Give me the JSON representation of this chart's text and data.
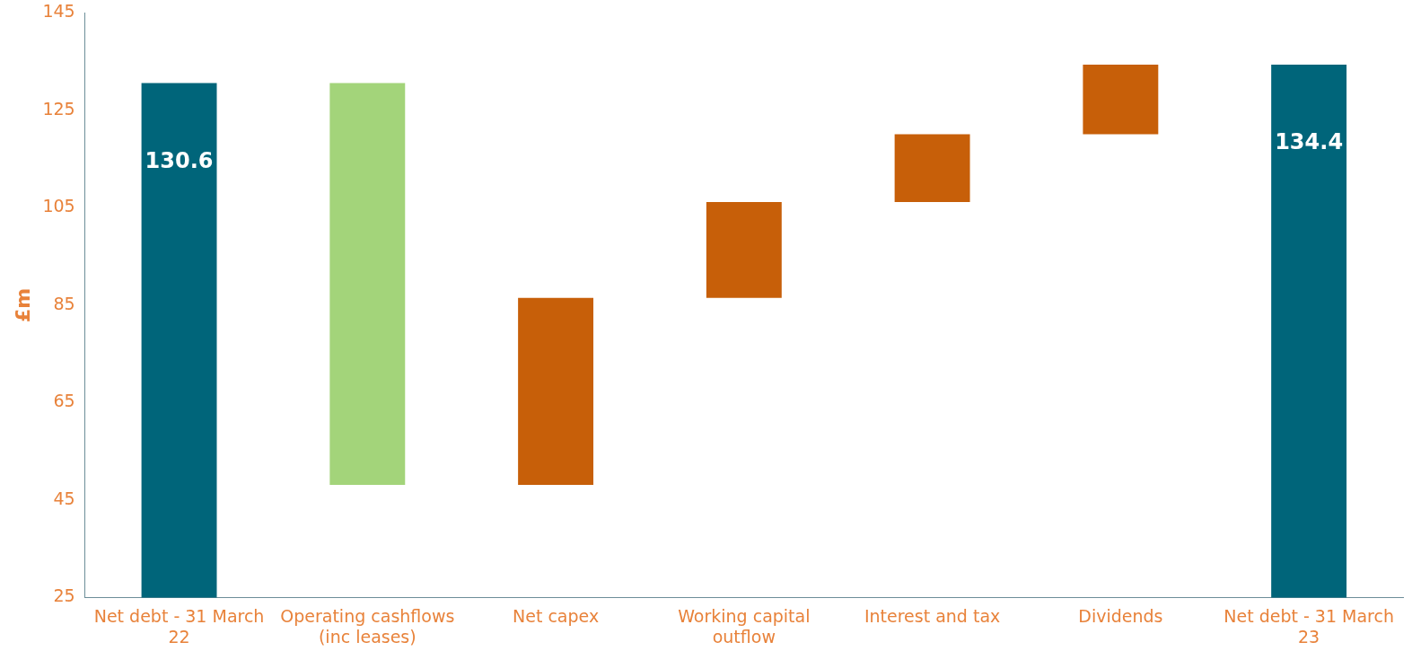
{
  "chart_data": {
    "type": "bar",
    "ylabel": "£m",
    "categories": [
      "Net debt - 31 March 22",
      "Operating cashflows (inc leases)",
      "Net capex",
      "Working capital outflow",
      "Interest and tax",
      "Dividends",
      "Net debt - 31 March 23"
    ],
    "values": [
      130.6,
      -82.5,
      38.4,
      19.7,
      13.9,
      14.3,
      134.4
    ],
    "base": [
      null,
      130.6,
      48.1,
      86.5,
      106.2,
      120.1,
      null
    ],
    "colors": [
      "#00657a",
      "#a3d47a",
      "#c75f09",
      "#c75f09",
      "#c75f09",
      "#c75f09",
      "#00657a"
    ],
    "value_labels": [
      "130.6",
      null,
      null,
      null,
      null,
      null,
      "134.4"
    ],
    "ylim": [
      25,
      145
    ],
    "yticks": [
      25,
      45,
      65,
      85,
      105,
      125,
      145
    ],
    "grid": false,
    "legend": false
  }
}
